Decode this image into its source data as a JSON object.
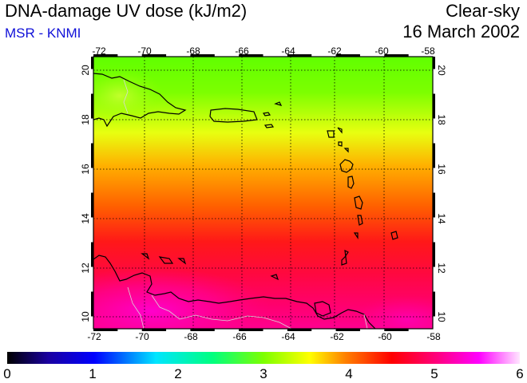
{
  "header": {
    "title": "DNA-damage UV dose (kJ/m2)",
    "source": "MSR - KNMI",
    "sky_condition": "Clear-sky",
    "date": "16 March 2002"
  },
  "map": {
    "lon_ticks": [
      "-72",
      "-70",
      "-68",
      "-66",
      "-64",
      "-62",
      "-60",
      "-58"
    ],
    "lat_ticks": [
      "20",
      "18",
      "16",
      "14",
      "12",
      "10"
    ],
    "lon_range": [
      -72,
      -58
    ],
    "lat_range": [
      9.5,
      20.5
    ],
    "region": "Caribbean"
  },
  "colorbar": {
    "ticks": [
      "0",
      "1",
      "2",
      "3",
      "4",
      "5",
      "6"
    ],
    "range": [
      0,
      6
    ],
    "colors": [
      "#000000",
      "#1a00a0",
      "#0000ff",
      "#00e5ff",
      "#00ff80",
      "#7dff00",
      "#ffff00",
      "#ff8000",
      "#ff0000",
      "#ff0080",
      "#ff00ff",
      "#ffe6ff"
    ]
  }
}
